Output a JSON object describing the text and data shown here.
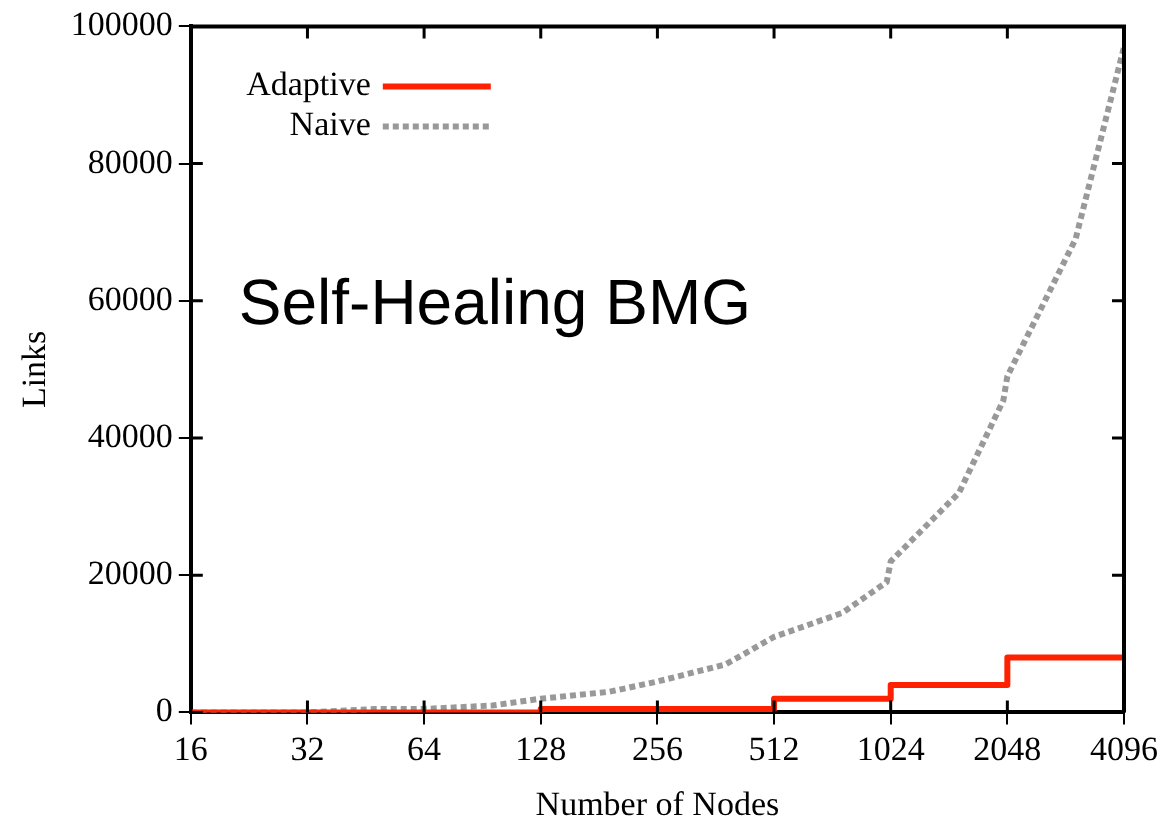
{
  "chart_data": {
    "type": "line",
    "xlabel": "Number of Nodes",
    "ylabel": "Links",
    "log": "x",
    "xlim": [
      16,
      4096
    ],
    "xticks": [
      16,
      32,
      64,
      128,
      256,
      512,
      1024,
      2048,
      4096
    ],
    "ylim": [
      0,
      100000
    ],
    "yticks": [
      0,
      20000,
      40000,
      60000,
      80000,
      100000
    ],
    "grid": false,
    "legend": "top left",
    "marker": "none",
    "annotations": [
      "Self-Healing BMG"
    ],
    "series": [
      {
        "name": "Adaptive",
        "color": "#ff2200",
        "type": "step",
        "line_style": "solid",
        "x": [
          16,
          32,
          64,
          128,
          256,
          512,
          1024,
          2048,
          4096
        ],
        "values": [
          0,
          0,
          0,
          500,
          500,
          2000,
          4000,
          8000,
          8000
        ]
      },
      {
        "name": "Naive",
        "color": "#999999",
        "type": "line",
        "line_style": "dotted",
        "x": [
          16,
          24,
          32,
          48,
          64,
          96,
          128,
          192,
          256,
          384,
          512,
          768,
          1000,
          1024,
          1536,
          2000,
          2048,
          3072,
          4096
        ],
        "values": [
          0,
          0,
          0,
          500,
          500,
          1000,
          2000,
          3000,
          4500,
          7000,
          11000,
          14500,
          19000,
          22000,
          32000,
          45500,
          49000,
          69000,
          97000
        ]
      }
    ]
  }
}
